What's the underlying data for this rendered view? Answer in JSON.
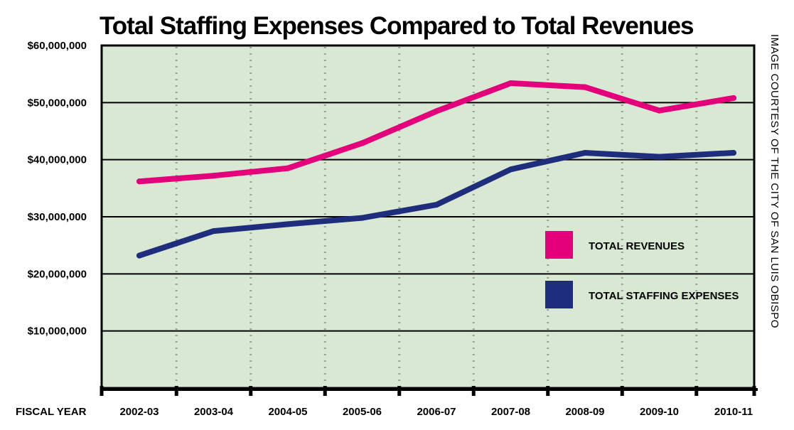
{
  "colors": {
    "plot_background": "#d9e8d3",
    "revenues": "#e5007b",
    "staffing": "#1f2d7d",
    "gridline": "#000000",
    "dotted_gridline": "#9aa39a",
    "axis": "#000000"
  },
  "chart_data": {
    "type": "line",
    "title": "Total Staffing Expenses Compared to Total Revenues",
    "xlabel": "FISCAL YEAR",
    "ylabel": "",
    "credit": "IMAGE COURTESY OF THE CITY OF SAN LUIS OBISPO",
    "ylim": [
      0,
      60000000
    ],
    "yticks": [
      10000000,
      20000000,
      30000000,
      40000000,
      50000000,
      60000000
    ],
    "ytick_labels": [
      "$10,000,000",
      "$20,000,000",
      "$30,000,000",
      "$40,000,000",
      "$50,000,000",
      "$60,000,000"
    ],
    "categories": [
      "2002-03",
      "2003-04",
      "2004-05",
      "2005-06",
      "2006-07",
      "2007-08",
      "2008-09",
      "2009-10",
      "2010-11"
    ],
    "grid": {
      "horizontal": "solid",
      "vertical": "dotted"
    },
    "legend_position": "right",
    "series": [
      {
        "name": "TOTAL REVENUES",
        "color": "#e5007b",
        "values": [
          36200000,
          37200000,
          38500000,
          42900000,
          48500000,
          53400000,
          52700000,
          48600000,
          50800000
        ]
      },
      {
        "name": "TOTAL STAFFING EXPENSES",
        "color": "#1f2d7d",
        "values": [
          23200000,
          27500000,
          28700000,
          29800000,
          32100000,
          38300000,
          41200000,
          40500000,
          41200000
        ]
      }
    ]
  }
}
